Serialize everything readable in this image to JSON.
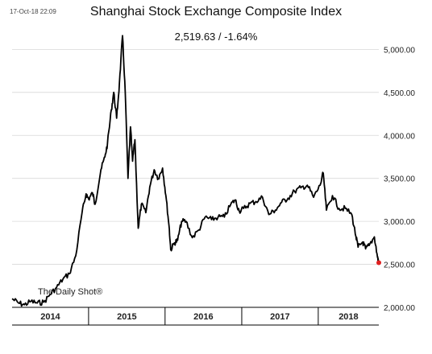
{
  "header": {
    "timestamp": "17-Oct-18 22:09",
    "title": "Shanghai Stock Exchange Composite Index",
    "subtitle": "2,519.63  /  -1.64%"
  },
  "watermark": "The Daily Shot®",
  "colors": {
    "line": "#000000",
    "last_point": "#e02020",
    "grid": "#d8d8d8"
  },
  "chart_data": {
    "type": "line",
    "title": "Shanghai Stock Exchange Composite Index",
    "subtitle": "2,519.63  /  -1.64%",
    "xlabel": "",
    "ylabel": "",
    "ylim": [
      2000,
      5200
    ],
    "xlim": [
      "2014-01-01",
      "2018-10-17"
    ],
    "y_ticks": [
      2000,
      2500,
      3000,
      3500,
      4000,
      4500,
      5000
    ],
    "y_tick_labels": [
      "2,000.00",
      "2,500.00",
      "3,000.00",
      "3,500.00",
      "4,000.00",
      "4,500.00",
      "5,000.00"
    ],
    "x_category_labels": [
      "2014",
      "2015",
      "2016",
      "2017",
      "2018"
    ],
    "x_category_boundaries": [
      "2014-01-01",
      "2015-01-01",
      "2016-01-01",
      "2017-01-01",
      "2018-01-01",
      "2018-10-17"
    ],
    "grid": "horizontal",
    "y_axis_position": "right",
    "series": [
      {
        "values": [
          [
            "2014-01-01",
            2100
          ],
          [
            "2014-02-01",
            2050
          ],
          [
            "2014-03-01",
            2030
          ],
          [
            "2014-04-01",
            2070
          ],
          [
            "2014-05-01",
            2050
          ],
          [
            "2014-06-01",
            2060
          ],
          [
            "2014-07-01",
            2150
          ],
          [
            "2014-08-01",
            2230
          ],
          [
            "2014-09-01",
            2330
          ],
          [
            "2014-10-01",
            2390
          ],
          [
            "2014-11-01",
            2600
          ],
          [
            "2014-12-01",
            3100
          ],
          [
            "2014-12-20",
            3320
          ],
          [
            "2015-01-01",
            3260
          ],
          [
            "2015-01-20",
            3330
          ],
          [
            "2015-02-01",
            3200
          ],
          [
            "2015-03-01",
            3600
          ],
          [
            "2015-03-20",
            3750
          ],
          [
            "2015-04-01",
            3900
          ],
          [
            "2015-04-20",
            4300
          ],
          [
            "2015-05-01",
            4500
          ],
          [
            "2015-05-15",
            4200
          ],
          [
            "2015-05-28",
            4600
          ],
          [
            "2015-06-12",
            5160
          ],
          [
            "2015-06-25",
            4500
          ],
          [
            "2015-07-08",
            3500
          ],
          [
            "2015-07-20",
            4100
          ],
          [
            "2015-07-30",
            3700
          ],
          [
            "2015-08-10",
            3950
          ],
          [
            "2015-08-26",
            2920
          ],
          [
            "2015-09-10",
            3200
          ],
          [
            "2015-10-01",
            3100
          ],
          [
            "2015-10-20",
            3400
          ],
          [
            "2015-11-10",
            3600
          ],
          [
            "2015-11-30",
            3500
          ],
          [
            "2015-12-20",
            3620
          ],
          [
            "2016-01-05",
            3300
          ],
          [
            "2016-01-20",
            2950
          ],
          [
            "2016-01-28",
            2670
          ],
          [
            "2016-02-15",
            2750
          ],
          [
            "2016-03-01",
            2780
          ],
          [
            "2016-03-20",
            3000
          ],
          [
            "2016-04-10",
            3000
          ],
          [
            "2016-05-10",
            2810
          ],
          [
            "2016-06-10",
            2900
          ],
          [
            "2016-07-10",
            3050
          ],
          [
            "2016-08-10",
            3020
          ],
          [
            "2016-09-10",
            3050
          ],
          [
            "2016-10-10",
            3050
          ],
          [
            "2016-11-10",
            3200
          ],
          [
            "2016-12-01",
            3250
          ],
          [
            "2016-12-20",
            3120
          ],
          [
            "2017-01-10",
            3150
          ],
          [
            "2017-02-10",
            3210
          ],
          [
            "2017-03-10",
            3230
          ],
          [
            "2017-04-10",
            3280
          ],
          [
            "2017-05-10",
            3080
          ],
          [
            "2017-06-10",
            3130
          ],
          [
            "2017-07-10",
            3220
          ],
          [
            "2017-08-10",
            3270
          ],
          [
            "2017-09-10",
            3350
          ],
          [
            "2017-10-10",
            3390
          ],
          [
            "2017-11-10",
            3420
          ],
          [
            "2017-12-10",
            3280
          ],
          [
            "2018-01-10",
            3420
          ],
          [
            "2018-01-25",
            3560
          ],
          [
            "2018-02-09",
            3130
          ],
          [
            "2018-03-10",
            3300
          ],
          [
            "2018-04-10",
            3150
          ],
          [
            "2018-05-10",
            3150
          ],
          [
            "2018-06-10",
            3080
          ],
          [
            "2018-06-30",
            2820
          ],
          [
            "2018-07-10",
            2700
          ],
          [
            "2018-08-01",
            2760
          ],
          [
            "2018-08-15",
            2680
          ],
          [
            "2018-09-01",
            2720
          ],
          [
            "2018-09-26",
            2820
          ],
          [
            "2018-10-11",
            2580
          ],
          [
            "2018-10-17",
            2519.63
          ]
        ]
      }
    ],
    "last_value": 2519.63,
    "last_change_pct": -1.64
  }
}
